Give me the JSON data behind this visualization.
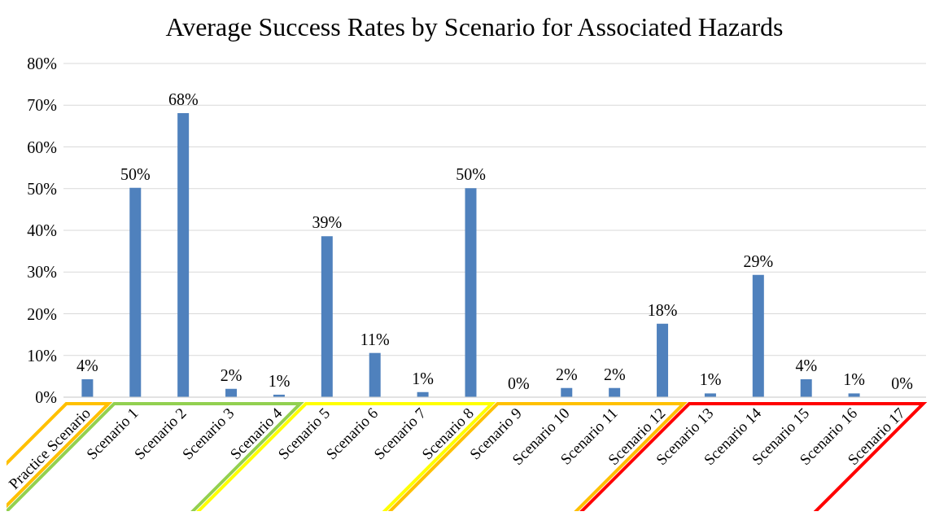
{
  "chart_data": {
    "type": "bar",
    "title": "Average Success Rates by Scenario for Associated Hazards",
    "categories": [
      "Practice Scenario",
      "Scenario 1",
      "Scenario 2",
      "Scenario 3",
      "Scenario 4",
      "Scenario 5",
      "Scenario 6",
      "Scenario 7",
      "Scenario 8",
      "Scenario 9",
      "Scenario 10",
      "Scenario 11",
      "Scenario 12",
      "Scenario 13",
      "Scenario 14",
      "Scenario 15",
      "Scenario 16",
      "Scenario 17"
    ],
    "values": [
      4.3,
      50.2,
      68.1,
      2.0,
      0.6,
      38.6,
      10.6,
      1.2,
      50.1,
      0,
      2.2,
      2.2,
      17.6,
      0.9,
      29.3,
      4.3,
      0.9,
      0
    ],
    "value_labels": [
      "4%",
      "50%",
      "68%",
      "2%",
      "1%",
      "39%",
      "11%",
      "1%",
      "50%",
      "0%",
      "2%",
      "2%",
      "18%",
      "1%",
      "29%",
      "4%",
      "1%",
      "0%"
    ],
    "color": "#4f81bd",
    "ylim": [
      0,
      80
    ],
    "yticks": [
      {
        "value": 0,
        "label": "0%"
      },
      {
        "value": 10,
        "label": "10%"
      },
      {
        "value": 20,
        "label": "20%"
      },
      {
        "value": 30,
        "label": "30%"
      },
      {
        "value": 40,
        "label": "40%"
      },
      {
        "value": 50,
        "label": "50%"
      },
      {
        "value": 60,
        "label": "60%"
      },
      {
        "value": 70,
        "label": "70%"
      },
      {
        "value": 80,
        "label": "80%"
      }
    ],
    "grid": "y",
    "legend": false
  }
}
